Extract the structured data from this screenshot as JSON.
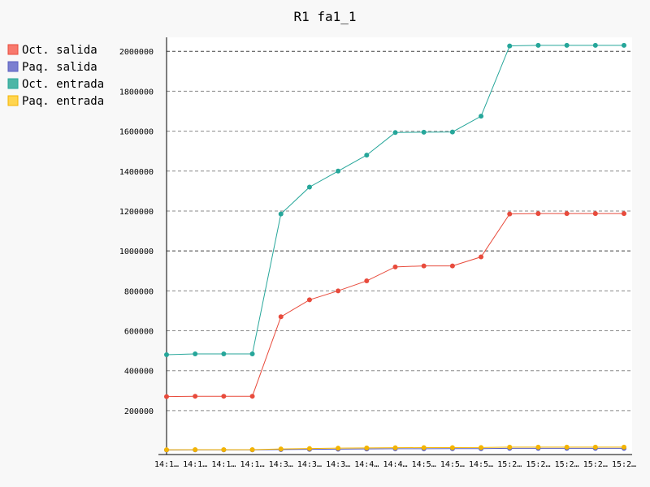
{
  "chart_data": {
    "type": "line",
    "title": "R1 fa1_1",
    "legend_position": "top-left",
    "grid": "horizontal-dashed",
    "categories": [
      "14:1…",
      "14:1…",
      "14:1…",
      "14:1…",
      "14:3…",
      "14:3…",
      "14:3…",
      "14:4…",
      "14:4…",
      "14:5…",
      "14:5…",
      "14:5…",
      "15:2…",
      "15:2…",
      "15:2…",
      "15:2…",
      "15:2…"
    ],
    "y_ticks": [
      200000,
      400000,
      600000,
      800000,
      1000000,
      1200000,
      1400000,
      1600000,
      1800000,
      2000000
    ],
    "ylim": [
      -20000,
      2070000
    ],
    "series": [
      {
        "name": "Oct. salida",
        "color": "#f8796d",
        "line_color": "#e84b3c",
        "values": [
          270000,
          272000,
          272000,
          272000,
          670000,
          755000,
          800000,
          850000,
          920000,
          925000,
          925000,
          970000,
          1185000,
          1187000,
          1187000,
          1187000,
          1187000
        ]
      },
      {
        "name": "Paq. salida",
        "color": "#7b7fd0",
        "line_color": "#5a5fc0",
        "values": [
          3000,
          3200,
          3200,
          3200,
          5000,
          6000,
          7000,
          8000,
          9000,
          9200,
          9300,
          9500,
          11000,
          11100,
          11100,
          11100,
          11100
        ]
      },
      {
        "name": "Oct. entrada",
        "color": "#4db6a6",
        "line_color": "#26a69a",
        "values": [
          480000,
          484000,
          484000,
          484000,
          1185000,
          1320000,
          1400000,
          1480000,
          1593000,
          1595000,
          1596000,
          1675000,
          2027000,
          2030000,
          2030000,
          2030000,
          2030000
        ]
      },
      {
        "name": "Paq. entrada",
        "color": "#ffd54f",
        "line_color": "#f4b400",
        "values": [
          4000,
          4200,
          4200,
          4200,
          8000,
          10000,
          12000,
          13000,
          14000,
          14500,
          14600,
          15000,
          17000,
          17100,
          17100,
          17100,
          17100
        ]
      }
    ]
  }
}
